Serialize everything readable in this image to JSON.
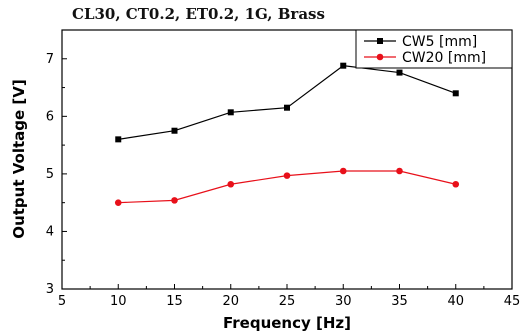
{
  "chart_data": {
    "type": "line",
    "title": "CL30, CT0.2, ET0.2, 1G, Brass",
    "xlabel": "Frequency [Hz]",
    "ylabel": "Output Voltage [V]",
    "xlim": [
      5,
      45
    ],
    "ylim": [
      3,
      7.5
    ],
    "xticks": [
      5,
      10,
      15,
      20,
      25,
      30,
      35,
      40,
      45
    ],
    "yticks": [
      3,
      4,
      5,
      6,
      7
    ],
    "x": [
      10,
      15,
      20,
      25,
      30,
      35,
      40
    ],
    "series": [
      {
        "name": "CW5 [mm]",
        "color": "#000000",
        "marker": "square",
        "values": [
          5.6,
          5.75,
          6.07,
          6.15,
          6.88,
          6.76,
          6.4
        ]
      },
      {
        "name": "CW20 [mm]",
        "color": "#e8101a",
        "marker": "circle",
        "values": [
          4.5,
          4.54,
          4.82,
          4.97,
          5.05,
          5.05,
          4.82
        ]
      }
    ],
    "legend_position": "top-right",
    "grid": false
  }
}
